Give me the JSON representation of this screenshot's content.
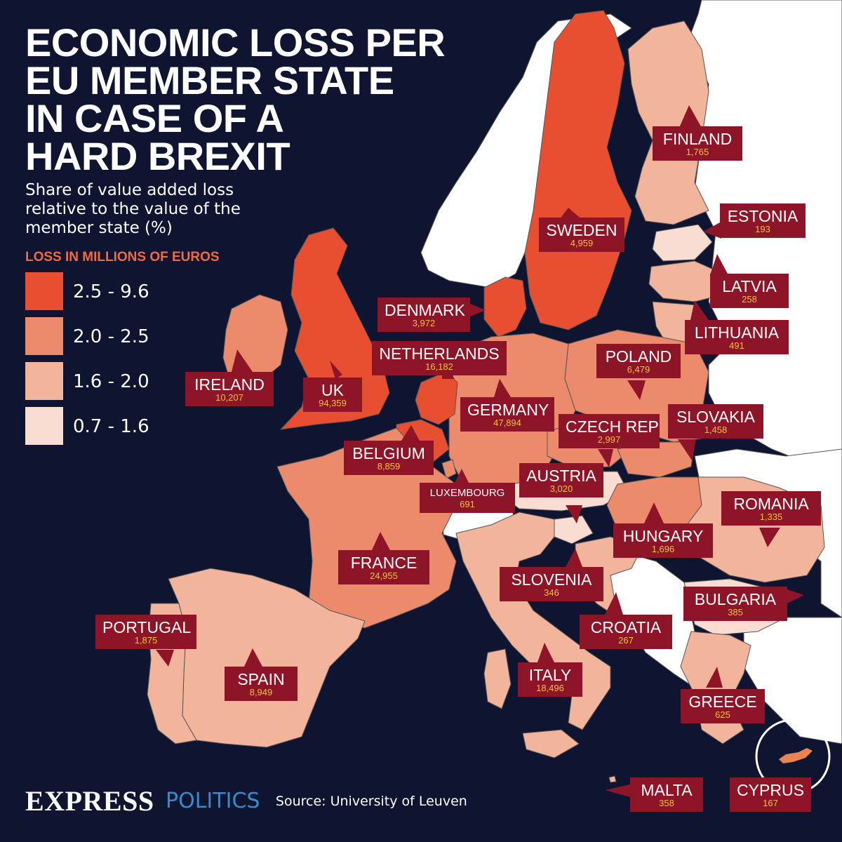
{
  "title": {
    "line1": "ECONOMIC LOSS PER",
    "line2": "EU MEMBER STATE",
    "line3": "IN CASE OF A",
    "line4": "HARD BREXIT"
  },
  "subtitle": "Share of value added loss relative to the value of the member state (%)",
  "legend": {
    "title": "LOSS IN MILLIONS OF EUROS",
    "items": [
      {
        "label": "2.5 - 9.6",
        "color": "#e84e30"
      },
      {
        "label": "2.0 - 2.5",
        "color": "#ec8a6c"
      },
      {
        "label": "1.6 - 2.0",
        "color": "#f3b49c"
      },
      {
        "label": "0.7 - 1.6",
        "color": "#f9dcd2"
      }
    ]
  },
  "countries": {
    "finland": {
      "name": "FINLAND",
      "value": "1,765"
    },
    "estonia": {
      "name": "ESTONIA",
      "value": "193"
    },
    "sweden": {
      "name": "SWEDEN",
      "value": "4,959"
    },
    "latvia": {
      "name": "LATVIA",
      "value": "258"
    },
    "denmark": {
      "name": "DENMARK",
      "value": "3,972"
    },
    "lithuania": {
      "name": "LITHUANIA",
      "value": "491"
    },
    "netherlands": {
      "name": "NETHERLANDS",
      "value": "16,182"
    },
    "poland": {
      "name": "POLAND",
      "value": "6,479"
    },
    "ireland": {
      "name": "IRELAND",
      "value": "10,207"
    },
    "uk": {
      "name": "UK",
      "value": "94,359"
    },
    "germany": {
      "name": "GERMANY",
      "value": "47,894"
    },
    "slovakia": {
      "name": "SLOVAKIA",
      "value": "1,458"
    },
    "czech": {
      "name": "CZECH REP",
      "value": "2,997"
    },
    "belgium": {
      "name": "BELGIUM",
      "value": "8,859"
    },
    "austria": {
      "name": "AUSTRIA",
      "value": "3,020"
    },
    "luxembourg": {
      "name": "LUXEMBOURG",
      "value": "691"
    },
    "romania": {
      "name": "ROMANIA",
      "value": "1,335"
    },
    "hungary": {
      "name": "HUNGARY",
      "value": "1,696"
    },
    "france": {
      "name": "FRANCE",
      "value": "24,955"
    },
    "slovenia": {
      "name": "SLOVENIA",
      "value": "346"
    },
    "bulgaria": {
      "name": "BULGARIA",
      "value": "385"
    },
    "portugal": {
      "name": "PORTUGAL",
      "value": "1,875"
    },
    "croatia": {
      "name": "CROATIA",
      "value": "267"
    },
    "spain": {
      "name": "SPAIN",
      "value": "8,949"
    },
    "italy": {
      "name": "ITALY",
      "value": "18,496"
    },
    "greece": {
      "name": "GREECE",
      "value": "625"
    },
    "malta": {
      "name": "MALTA",
      "value": "358"
    },
    "cyprus": {
      "name": "CYPRUS",
      "value": "167"
    }
  },
  "footer": {
    "brand": "EXPRESS",
    "section": "POLITICS",
    "source": "Source: University of Leuven"
  },
  "colors": {
    "background": "#0f1430",
    "label_box": "#8e1427",
    "label_value": "#f6c046",
    "non_eu_land": "#ffffff",
    "border": "#555555"
  }
}
